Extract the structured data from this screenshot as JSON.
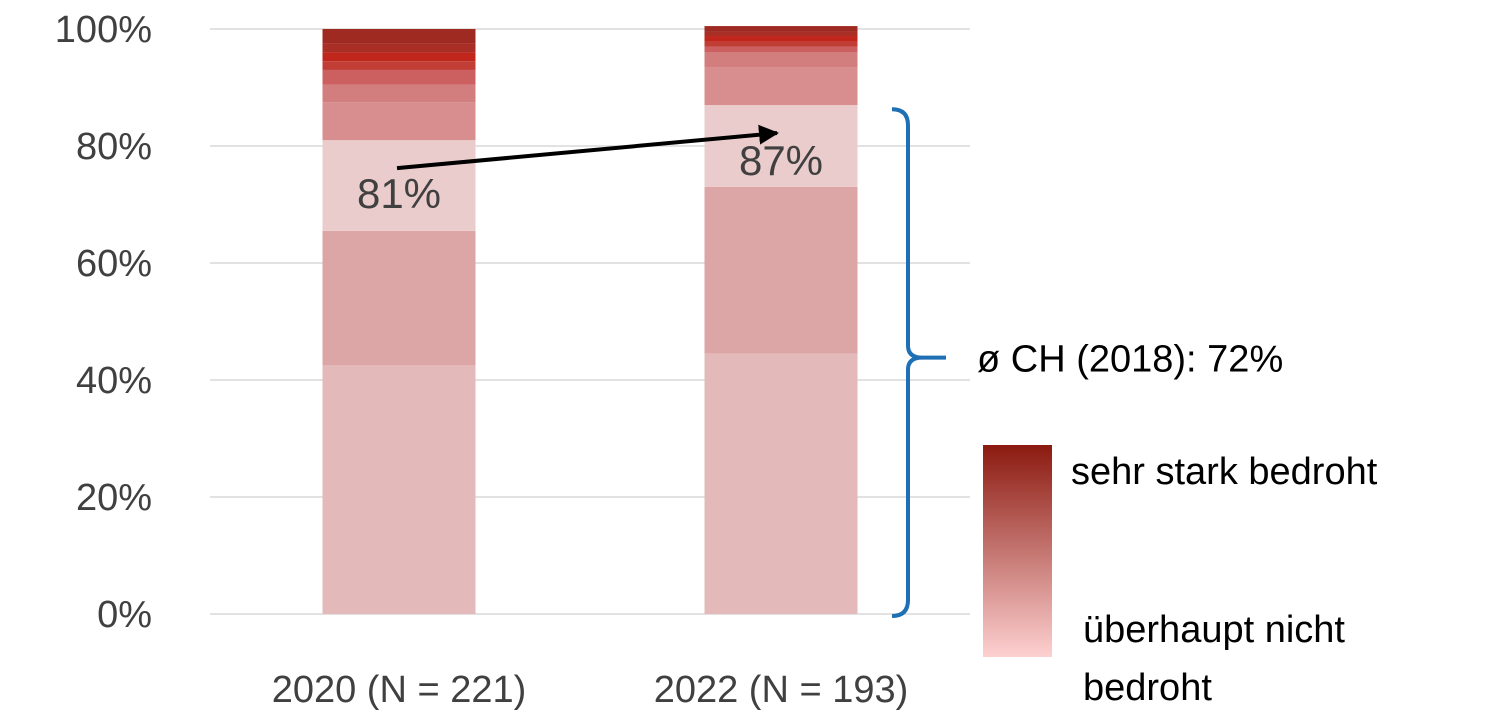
{
  "chart_data": {
    "type": "bar",
    "stacked": true,
    "categories": [
      "2020 (N = 221)",
      "2022 (N = 193)"
    ],
    "yticks": [
      "0%",
      "20%",
      "40%",
      "60%",
      "80%",
      "100%"
    ],
    "ylim": [
      0,
      100
    ],
    "grid": true,
    "segments": [
      {
        "color": "#e3b9b9",
        "values": [
          42.5,
          44.5
        ]
      },
      {
        "color": "#dda6a6",
        "values": [
          23.0,
          28.5
        ]
      },
      {
        "color": "#ebcccc",
        "values": [
          15.5,
          14.0
        ]
      },
      {
        "color": "#d88e8e",
        "values": [
          6.5,
          6.5
        ]
      },
      {
        "color": "#d37e7e",
        "values": [
          3.0,
          2.5
        ]
      },
      {
        "color": "#cc6060",
        "values": [
          2.5,
          1.0
        ]
      },
      {
        "color": "#c03e36",
        "values": [
          1.5,
          0.8
        ]
      },
      {
        "color": "#c0261c",
        "values": [
          1.5,
          1.0
        ]
      },
      {
        "color": "#a82e26",
        "values": [
          1.5,
          0.7
        ]
      },
      {
        "color": "#9e2a22",
        "values": [
          2.5,
          1.0
        ]
      }
    ],
    "bar_labels": [
      {
        "text": "81%",
        "value": 81
      },
      {
        "text": "87%",
        "value": 87
      }
    ],
    "arrow": {
      "from_value": 81,
      "to_value": 87
    },
    "bracket": {
      "range": [
        0,
        88
      ],
      "label": "ø CH (2018): 72%",
      "color": "#1f6fb4"
    },
    "legend": {
      "top_label": "sehr stark bedroht",
      "bottom_label_line1": "überhaupt nicht",
      "bottom_label_line2": "bedroht",
      "top_color": "#8b1a10",
      "bottom_color": "#fdd0d0"
    }
  }
}
